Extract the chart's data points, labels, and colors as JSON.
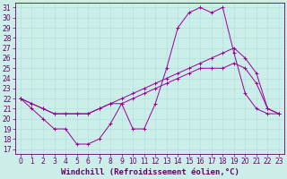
{
  "xlabel": "Windchill (Refroidissement éolien,°C)",
  "bg_color": "#cceee8",
  "line_color": "#990099",
  "xlim_min": -0.5,
  "xlim_max": 23.5,
  "ylim_min": 16.5,
  "ylim_max": 31.5,
  "xticks": [
    0,
    1,
    2,
    3,
    4,
    5,
    6,
    7,
    8,
    9,
    10,
    11,
    12,
    13,
    14,
    15,
    16,
    17,
    18,
    19,
    20,
    21,
    22,
    23
  ],
  "yticks": [
    17,
    18,
    19,
    20,
    21,
    22,
    23,
    24,
    25,
    26,
    27,
    28,
    29,
    30,
    31
  ],
  "curve1_x": [
    0,
    1,
    2,
    3,
    4,
    5,
    6,
    7,
    8,
    9,
    10,
    11,
    12,
    13,
    14,
    15,
    16,
    17,
    18,
    19,
    20,
    21,
    22,
    23
  ],
  "curve1_y": [
    22.0,
    21.0,
    20.0,
    19.0,
    19.0,
    17.5,
    17.5,
    18.0,
    19.5,
    21.5,
    19.0,
    19.0,
    21.5,
    25.0,
    29.0,
    30.5,
    31.0,
    30.5,
    31.0,
    26.5,
    22.5,
    21.0,
    20.5,
    20.5
  ],
  "curve2_x": [
    0,
    1,
    2,
    3,
    4,
    5,
    6,
    7,
    8,
    9,
    10,
    11,
    12,
    13,
    14,
    15,
    16,
    17,
    18,
    19,
    20,
    21,
    22,
    23
  ],
  "curve2_y": [
    22.0,
    21.5,
    21.0,
    20.5,
    20.5,
    20.5,
    20.5,
    21.0,
    21.5,
    22.0,
    22.5,
    23.0,
    23.5,
    24.0,
    24.5,
    25.0,
    25.5,
    26.0,
    26.5,
    27.0,
    26.0,
    24.5,
    21.0,
    20.5
  ],
  "curve3_x": [
    0,
    1,
    2,
    3,
    4,
    5,
    6,
    7,
    8,
    9,
    10,
    11,
    12,
    13,
    14,
    15,
    16,
    17,
    18,
    19,
    20,
    21,
    22,
    23
  ],
  "curve3_y": [
    22.0,
    21.5,
    21.0,
    20.5,
    20.5,
    20.5,
    20.5,
    21.0,
    21.5,
    21.5,
    22.0,
    22.5,
    23.0,
    23.5,
    24.0,
    24.5,
    25.0,
    25.0,
    25.0,
    25.5,
    25.0,
    23.5,
    21.0,
    20.5
  ],
  "grid_color": "#aadddd",
  "xlabel_fontsize": 6.5,
  "tick_fontsize": 5.5
}
